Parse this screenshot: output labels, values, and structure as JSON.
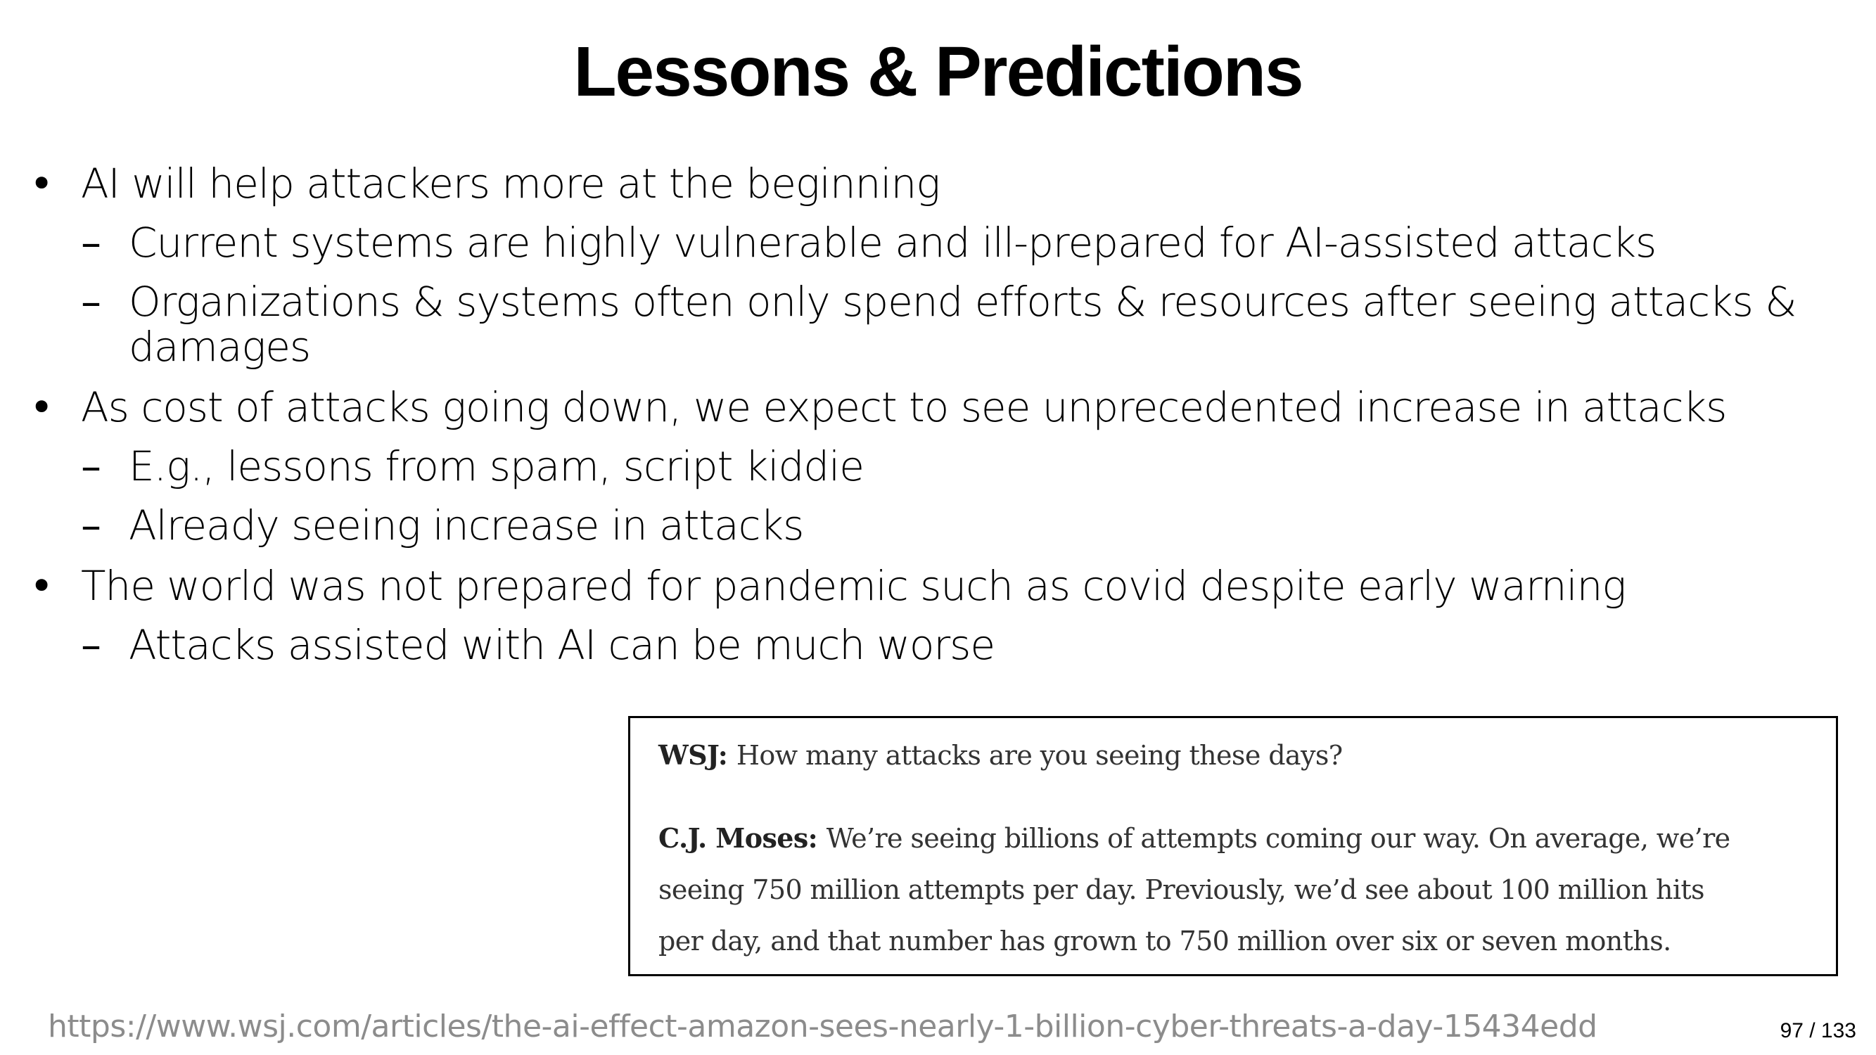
{
  "slide": {
    "title": "Lessons & Predictions",
    "bullets": [
      {
        "marker": "•",
        "text": "AI will help attackers more at the beginning",
        "sub": [
          {
            "marker": "–",
            "text": "Current systems are highly vulnerable and ill-prepared for AI-assisted attacks"
          },
          {
            "marker": "–",
            "text": "Organizations & systems often only spend efforts & resources after seeing attacks &",
            "continuation": "damages"
          }
        ]
      },
      {
        "marker": "•",
        "text": "As cost of attacks going down, we expect to see unprecedented increase in attacks",
        "sub": [
          {
            "marker": "–",
            "text": "E.g., lessons from spam, script kiddie"
          },
          {
            "marker": "–",
            "text": "Already seeing increase in attacks"
          }
        ]
      },
      {
        "marker": "•",
        "text": "The world was not prepared for pandemic such as covid despite early warning",
        "sub": [
          {
            "marker": "–",
            "text": "Attacks assisted with AI can be much worse"
          }
        ]
      }
    ],
    "quote": {
      "q_speaker": "WSJ:",
      "q_text": "How many attacks are you seeing these days?",
      "a_speaker": "C.J. Moses:",
      "a_line1": "We’re seeing billions of attempts coming our way. On average, we’re",
      "a_line2": "seeing 750 million attempts per day. Previously, we’d see about 100 million hits",
      "a_line3": "per day, and that number has grown to 750 million over six or seven months."
    },
    "source_url": "https://www.wsj.com/articles/the-ai-effect-amazon-sees-nearly-1-billion-cyber-threats-a-day-15434edd",
    "page_number": "97 / 133"
  }
}
